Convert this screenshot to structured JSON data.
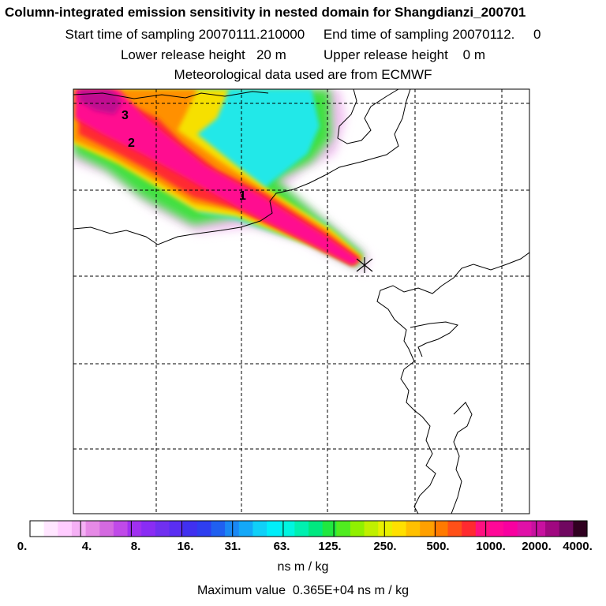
{
  "header": {
    "title": "Column-integrated emission sensitivity in nested domain for Shangdianzi_200701",
    "line2": "Start time of sampling 20070111.210000     End time of sampling 20070112.     0",
    "line3": "Lower release height   20 m          Upper release height    0 m",
    "line4": "Meteorological data used are from ECMWF"
  },
  "chart_data": {
    "type": "heatmap",
    "subject": "FLEXPART footprint plume extending north-west from receptor",
    "plume_labels": [
      "1",
      "2",
      "3"
    ],
    "receptor_marker": "x-cross",
    "colorbar": {
      "tick_labels": [
        "0.",
        "4.",
        "8.",
        "16.",
        "31.",
        "63.",
        "125.",
        "250.",
        "500.",
        "1000.",
        "2000.",
        "4000."
      ],
      "tick_values": [
        0,
        4,
        8,
        16,
        31,
        63,
        125,
        250,
        500,
        1000,
        2000,
        4000
      ],
      "colors": [
        "#ffffff",
        "#ffe6ff",
        "#ffccff",
        "#f5b0f5",
        "#e68ae6",
        "#d46ae0",
        "#c04ae8",
        "#a030f0",
        "#8a2cf4",
        "#7030f0",
        "#5a2ef2",
        "#4030f0",
        "#2e3ef0",
        "#2060f0",
        "#1a88f4",
        "#14a8f8",
        "#10d0f8",
        "#00eefa",
        "#00f5e0",
        "#00f0b0",
        "#00e880",
        "#20e840",
        "#50ec20",
        "#90f000",
        "#c0f000",
        "#e8f000",
        "#ffe000",
        "#ffc000",
        "#ffa000",
        "#ff7a00",
        "#ff5018",
        "#ff2a30",
        "#ff1080",
        "#ff0898",
        "#f800a0",
        "#e010a8",
        "#c810a0",
        "#a00880",
        "#700860",
        "#300020"
      ],
      "units": "ns m / kg"
    },
    "max_value_text": "Maximum value  0.365E+04 ns m / kg"
  }
}
